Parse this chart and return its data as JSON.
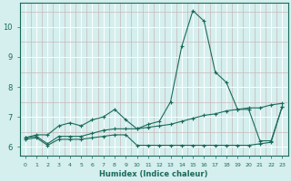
{
  "xlabel": "Humidex (Indice chaleur)",
  "xlim": [
    -0.5,
    23.5
  ],
  "ylim": [
    5.7,
    10.8
  ],
  "yticks": [
    6,
    7,
    8,
    9,
    10
  ],
  "xticks": [
    0,
    1,
    2,
    3,
    4,
    5,
    6,
    7,
    8,
    9,
    10,
    11,
    12,
    13,
    14,
    15,
    16,
    17,
    18,
    19,
    20,
    21,
    22,
    23
  ],
  "bg_color": "#d5eeee",
  "plot_bg_color": "#d5eeee",
  "line_color": "#1a6b5a",
  "grid_major_color": "#ffffff",
  "grid_minor_color": "#c8b8b8",
  "line1_y": [
    6.3,
    6.4,
    6.4,
    6.7,
    6.8,
    6.7,
    6.9,
    7.0,
    7.25,
    6.9,
    6.6,
    6.75,
    6.85,
    7.5,
    9.35,
    10.55,
    10.2,
    8.5,
    8.15,
    7.25,
    7.25,
    6.2,
    6.2,
    7.35
  ],
  "line2_y": [
    6.3,
    6.35,
    6.1,
    6.35,
    6.35,
    6.35,
    6.45,
    6.55,
    6.6,
    6.6,
    6.6,
    6.65,
    6.7,
    6.75,
    6.85,
    6.95,
    7.05,
    7.1,
    7.2,
    7.25,
    7.3,
    7.3,
    7.4,
    7.45
  ],
  "line3_y": [
    6.25,
    6.3,
    6.05,
    6.25,
    6.25,
    6.25,
    6.3,
    6.35,
    6.4,
    6.4,
    6.05,
    6.05,
    6.05,
    6.05,
    6.05,
    6.05,
    6.05,
    6.05,
    6.05,
    6.05,
    6.05,
    6.1,
    6.15,
    7.35
  ]
}
